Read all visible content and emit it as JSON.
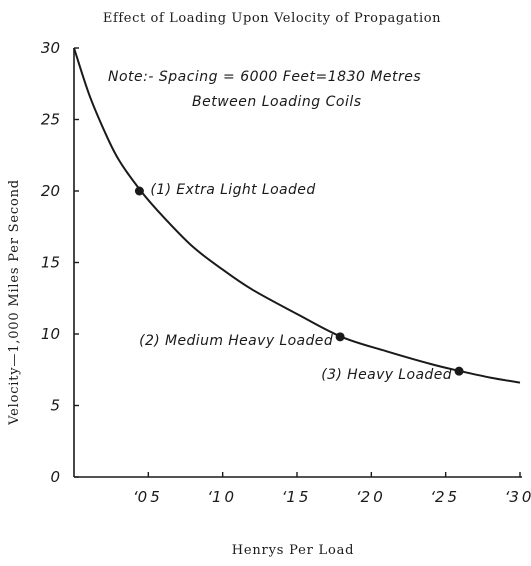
{
  "chart_data": {
    "type": "line",
    "title": "Effect of Loading Upon Velocity of Propagation",
    "xlabel": "Henrys Per Load",
    "ylabel": "Velocity—1,000 Miles Per Second",
    "xlim": [
      0,
      0.3
    ],
    "ylim": [
      0,
      30
    ],
    "x_ticks": [
      0.05,
      0.1,
      0.15,
      0.2,
      0.25,
      0.3
    ],
    "x_tick_labels": [
      "‘0 5",
      "‘1 0",
      "‘1 5",
      "‘2 0",
      "‘2 5",
      "‘3 0"
    ],
    "y_ticks": [
      0,
      5,
      10,
      15,
      20,
      25,
      30
    ],
    "y_tick_labels": [
      "0",
      "5",
      "10",
      "15",
      "20",
      "25",
      "30"
    ],
    "grid": false,
    "note": [
      "Note:- Spacing = 6000 Feet=1830 Metres",
      "Between Loading Coils"
    ],
    "series": [
      {
        "x": [
          0.0,
          0.01,
          0.02,
          0.03,
          0.045,
          0.06,
          0.08,
          0.1,
          0.12,
          0.15,
          0.18,
          0.21,
          0.24,
          0.26,
          0.28,
          0.3
        ],
        "y": [
          30.0,
          26.8,
          24.3,
          22.2,
          20.0,
          18.2,
          16.1,
          14.5,
          13.1,
          11.4,
          9.8,
          8.8,
          7.9,
          7.4,
          6.95,
          6.6
        ]
      }
    ],
    "points": [
      {
        "x": 0.044,
        "y": 20.0,
        "label": "(1) Extra Light Loaded",
        "label_side": "right"
      },
      {
        "x": 0.179,
        "y": 9.8,
        "label": "(2) Medium Heavy Loaded",
        "label_side": "left"
      },
      {
        "x": 0.259,
        "y": 7.4,
        "label": "(3) Heavy Loaded",
        "label_side": "left"
      }
    ]
  }
}
